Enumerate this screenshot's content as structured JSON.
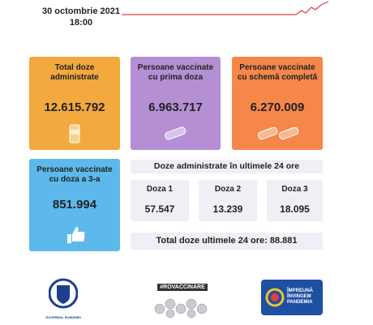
{
  "header": {
    "date": "30 octombrie 2021",
    "time": "18:00"
  },
  "cards": [
    {
      "label": "Total doze administrate",
      "value": "12.615.792"
    },
    {
      "label": "Persoane vaccinate cu prima doza",
      "value": "6.963.717"
    },
    {
      "label": "Persoane vaccinate cu schemă completă",
      "value": "6.270.009"
    },
    {
      "label": "Persoane vaccinate cu doza a 3-a",
      "value": "851.994"
    }
  ],
  "last24": {
    "title": "Doze administrate în ultimele 24 ore",
    "doses": [
      {
        "label": "Doza 1",
        "value": "57.547"
      },
      {
        "label": "Doza 2",
        "value": "13.239"
      },
      {
        "label": "Doza 3",
        "value": "18.095"
      }
    ],
    "total_label": "Total doze ultimele 24 ore:",
    "total_value": "88.881"
  },
  "logos": {
    "government": "GUVERNUL ROMÂNIEI",
    "hashtag": "#ROVACCINARE",
    "campaign": "ÎMPREUNĂ ÎNVINGEM PANDEMIA"
  }
}
